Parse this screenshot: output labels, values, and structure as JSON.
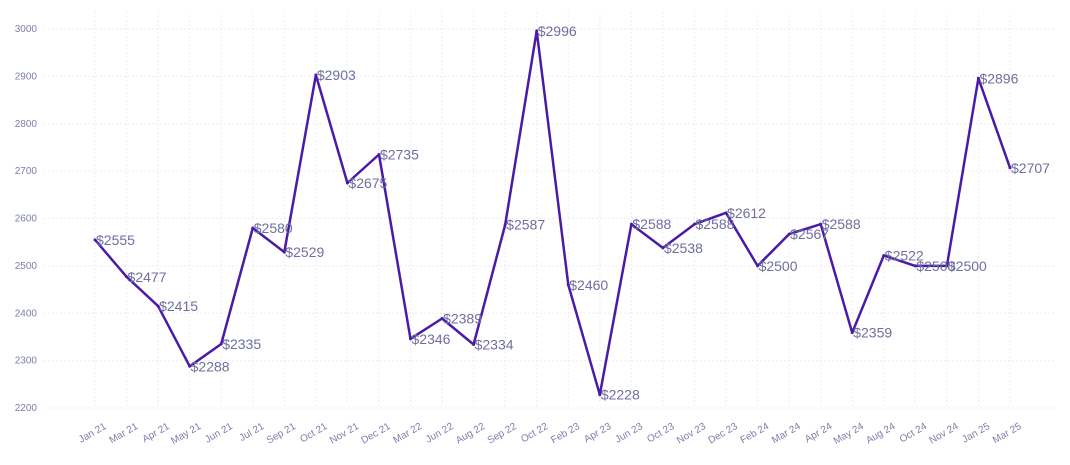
{
  "chart_data": {
    "type": "line",
    "title": "",
    "xlabel": "",
    "ylabel": "",
    "ylim": [
      2200,
      3000
    ],
    "y_ticks": [
      2200,
      2300,
      2400,
      2500,
      2600,
      2700,
      2800,
      2900,
      3000
    ],
    "grid": true,
    "legend": "none",
    "categories": [
      "Jan 21",
      "Mar 21",
      "Apr 21",
      "May 21",
      "Jun 21",
      "Jul 21",
      "Sep 21",
      "Oct 21",
      "Nov 21",
      "Dec 21",
      "Mar 22",
      "Jun 22",
      "Aug 22",
      "Sep 22",
      "Oct 22",
      "Feb 23",
      "Apr 23",
      "Jun 23",
      "Oct 23",
      "Nov 23",
      "Dec 23",
      "Feb 24",
      "Mar 24",
      "Apr 24",
      "May 24",
      "Aug 24",
      "Oct 24",
      "Nov 24",
      "Jan 25",
      "Mar 25"
    ],
    "series": [
      {
        "values": [
          2555,
          2477,
          2415,
          2288,
          2335,
          2580,
          2529,
          2903,
          2675,
          2735,
          2346,
          2389,
          2334,
          2587,
          2996,
          2460,
          2228,
          2588,
          2538,
          2588,
          2612,
          2500,
          2567,
          2588,
          2359,
          2522,
          2500,
          2500,
          2896,
          2707
        ],
        "labels": [
          "$2555",
          "$2477",
          "$2415",
          "$2288",
          "$2335",
          "$2580",
          "$2529",
          "$2903",
          "$2675",
          "$2735",
          "$2346",
          "$2389",
          "$2334",
          "$2587",
          "$2996",
          "$2460",
          "$2228",
          "$2588",
          "$2538",
          "$2588",
          "$2612",
          "$2500",
          "$2567",
          "$2588",
          "$2359",
          "$2522",
          "$2500",
          "$2500",
          "$2896",
          "$2707"
        ],
        "color": "#4a1aa8"
      }
    ]
  }
}
